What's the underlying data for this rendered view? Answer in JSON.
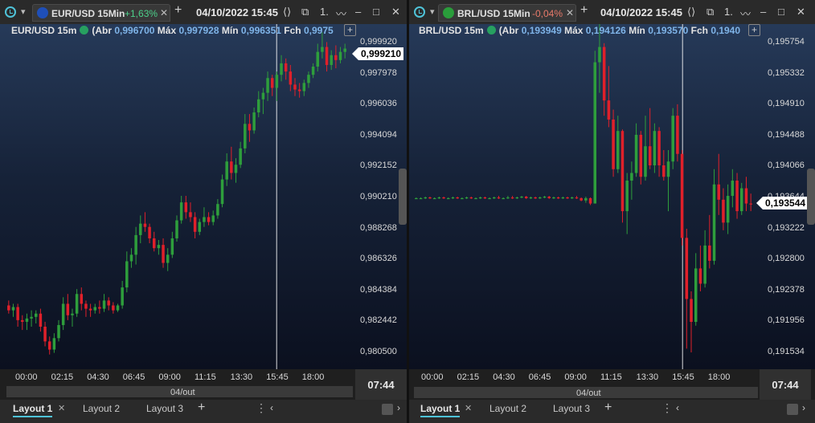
{
  "colors": {
    "up": "#2e9e3c",
    "down": "#e0202a",
    "accent": "#4fc3d8",
    "positive": "#4cd08a",
    "negative": "#e87a6a",
    "value": "#7fb4e8",
    "crosshair": "#ffffff"
  },
  "panels": [
    {
      "id": "eurusd",
      "tab": {
        "symbol": "EUR/USD 15Min",
        "change": "+1,63%",
        "change_sign": "positive",
        "flag_icon": "eu-flag-icon",
        "close_label": "✕"
      },
      "datetime": "04/10/2022 15:45",
      "toolbar_icons": [
        "share-icon",
        "window-icon",
        "one-step-icon",
        "line-chart-icon",
        "minimize-icon",
        "maximize-icon",
        "close-icon"
      ],
      "info": {
        "title": "EUR/USD 15m",
        "open_label": "(Abr",
        "open": "0,996700",
        "high_label": "Máx",
        "high": "0,997928",
        "low_label": "Mín",
        "low": "0,996351",
        "close_label": "Fch",
        "close": "0,9975"
      },
      "y_ticks": [
        "0,999920",
        "0,997978",
        "0,996036",
        "0,994094",
        "0,992152",
        "0,990210",
        "0,988268",
        "0,986326",
        "0,984384",
        "0,982442",
        "0,980500"
      ],
      "last_price": "0,999210",
      "x_ticks": [
        "00:00",
        "02:15",
        "04:30",
        "06:45",
        "09:00",
        "11:15",
        "13:30",
        "15:45",
        "18:00"
      ],
      "time_box": "07:44",
      "scroll_date": "04/out",
      "chart_data": {
        "type": "candlestick",
        "y_range": [
          0.9796,
          1.0007
        ],
        "x_range": [
          "00:00",
          "20:30"
        ],
        "crosshair_time": "15:45",
        "candles": [
          [
            0.9835,
            0.9838,
            0.983,
            0.9832
          ],
          [
            0.9832,
            0.9836,
            0.9828,
            0.9834
          ],
          [
            0.9834,
            0.9836,
            0.9822,
            0.9826
          ],
          [
            0.9826,
            0.9829,
            0.982,
            0.9825
          ],
          [
            0.9825,
            0.983,
            0.982,
            0.9827
          ],
          [
            0.9827,
            0.9832,
            0.9822,
            0.9828
          ],
          [
            0.9828,
            0.9832,
            0.9824,
            0.983
          ],
          [
            0.983,
            0.9833,
            0.9819,
            0.9822
          ],
          [
            0.9822,
            0.9825,
            0.981,
            0.9813
          ],
          [
            0.9813,
            0.9816,
            0.9805,
            0.9808
          ],
          [
            0.9808,
            0.9818,
            0.9806,
            0.9815
          ],
          [
            0.9815,
            0.9826,
            0.9813,
            0.9823
          ],
          [
            0.9823,
            0.984,
            0.982,
            0.9836
          ],
          [
            0.9836,
            0.9842,
            0.9826,
            0.9829
          ],
          [
            0.9829,
            0.9833,
            0.9822,
            0.983
          ],
          [
            0.983,
            0.9845,
            0.9828,
            0.9842
          ],
          [
            0.9842,
            0.9846,
            0.9832,
            0.9836
          ],
          [
            0.9836,
            0.9838,
            0.9828,
            0.9833
          ],
          [
            0.9833,
            0.9836,
            0.9828,
            0.9832
          ],
          [
            0.9832,
            0.9836,
            0.983,
            0.9834
          ],
          [
            0.9834,
            0.9838,
            0.983,
            0.9833
          ],
          [
            0.9833,
            0.9842,
            0.9831,
            0.9838
          ],
          [
            0.9838,
            0.984,
            0.9832,
            0.9835
          ],
          [
            0.9835,
            0.9837,
            0.983,
            0.9832
          ],
          [
            0.9832,
            0.9836,
            0.9831,
            0.9835
          ],
          [
            0.9835,
            0.985,
            0.9833,
            0.9846
          ],
          [
            0.9846,
            0.9868,
            0.9843,
            0.9862
          ],
          [
            0.9862,
            0.987,
            0.9858,
            0.9866
          ],
          [
            0.9866,
            0.9883,
            0.986,
            0.9878
          ],
          [
            0.9878,
            0.989,
            0.9873,
            0.9885
          ],
          [
            0.9885,
            0.9892,
            0.988,
            0.9883
          ],
          [
            0.9883,
            0.9885,
            0.9873,
            0.9876
          ],
          [
            0.9876,
            0.988,
            0.9868,
            0.987
          ],
          [
            0.987,
            0.9875,
            0.9866,
            0.9872
          ],
          [
            0.9872,
            0.9876,
            0.9858,
            0.9861
          ],
          [
            0.9861,
            0.987,
            0.9856,
            0.9866
          ],
          [
            0.9866,
            0.988,
            0.9864,
            0.9876
          ],
          [
            0.9876,
            0.989,
            0.9874,
            0.9887
          ],
          [
            0.9887,
            0.9902,
            0.9885,
            0.9898
          ],
          [
            0.9898,
            0.9902,
            0.9888,
            0.9892
          ],
          [
            0.9892,
            0.9898,
            0.9886,
            0.9889
          ],
          [
            0.9889,
            0.9892,
            0.9876,
            0.988
          ],
          [
            0.988,
            0.9888,
            0.9878,
            0.9886
          ],
          [
            0.9886,
            0.9895,
            0.9883,
            0.9889
          ],
          [
            0.9889,
            0.9892,
            0.9884,
            0.9886
          ],
          [
            0.9886,
            0.9893,
            0.9884,
            0.989
          ],
          [
            0.989,
            0.99,
            0.9888,
            0.9897
          ],
          [
            0.9897,
            0.9915,
            0.9895,
            0.9912
          ],
          [
            0.9912,
            0.9928,
            0.9908,
            0.9923
          ],
          [
            0.9923,
            0.9932,
            0.9912,
            0.9916
          ],
          [
            0.9916,
            0.9925,
            0.991,
            0.9921
          ],
          [
            0.9921,
            0.9935,
            0.9919,
            0.9931
          ],
          [
            0.9931,
            0.9952,
            0.9928,
            0.9946
          ],
          [
            0.9946,
            0.9952,
            0.9935,
            0.9942
          ],
          [
            0.9942,
            0.9956,
            0.994,
            0.9953
          ],
          [
            0.9953,
            0.9966,
            0.995,
            0.9961
          ],
          [
            0.9961,
            0.9968,
            0.9952,
            0.9965
          ],
          [
            0.9965,
            0.9978,
            0.996,
            0.9974
          ],
          [
            0.9974,
            0.9976,
            0.9963,
            0.9968
          ],
          [
            0.9968,
            0.9978,
            0.996,
            0.9976
          ],
          [
            0.9976,
            0.9988,
            0.9972,
            0.9983
          ],
          [
            0.9983,
            0.9986,
            0.9973,
            0.9978
          ],
          [
            0.9978,
            0.9982,
            0.9966,
            0.997
          ],
          [
            0.997,
            0.9974,
            0.9963,
            0.9967
          ],
          [
            0.9967,
            0.9971,
            0.9962,
            0.9966
          ],
          [
            0.9966,
            0.9973,
            0.9963,
            0.9971
          ],
          [
            0.9971,
            0.9978,
            0.9968,
            0.9976
          ],
          [
            0.9976,
            0.9983,
            0.9974,
            0.9981
          ],
          [
            0.9981,
            0.9995,
            0.9978,
            0.999
          ],
          [
            0.999,
            1.0002,
            0.9986,
            0.9993
          ],
          [
            0.9993,
            0.9996,
            0.9978,
            0.9982
          ],
          [
            0.9982,
            0.9991,
            0.9979,
            0.9988
          ],
          [
            0.9988,
            0.9994,
            0.998,
            0.9985
          ],
          [
            0.9985,
            0.9993,
            0.9983,
            0.999
          ],
          [
            0.999,
            0.9995,
            0.9986,
            0.9992
          ]
        ]
      }
    },
    {
      "id": "brlusd",
      "tab": {
        "symbol": "BRL/USD 15Min",
        "change": "-0,04%",
        "change_sign": "negative",
        "flag_icon": "br-flag-icon",
        "close_label": "✕"
      },
      "datetime": "04/10/2022 15:45",
      "toolbar_icons": [
        "share-icon",
        "window-icon",
        "one-step-icon",
        "line-chart-icon",
        "minimize-icon",
        "maximize-icon",
        "close-icon"
      ],
      "info": {
        "title": "BRL/USD 15m",
        "open_label": "(Abr",
        "open": "0,193949",
        "high_label": "Máx",
        "high": "0,194126",
        "low_label": "Mín",
        "low": "0,193570",
        "close_label": "Fch",
        "close": "0,1940"
      },
      "y_ticks": [
        "0,195754",
        "0,195332",
        "0,194910",
        "0,194488",
        "0,194066",
        "0,193644",
        "0,193222",
        "0,192800",
        "0,192378",
        "0,191956",
        "0,191534"
      ],
      "last_price": "0,193544",
      "x_ticks": [
        "00:00",
        "02:15",
        "04:30",
        "06:45",
        "09:00",
        "11:15",
        "13:30",
        "15:45",
        "18:00"
      ],
      "time_box": "07:44",
      "scroll_date": "04/out",
      "chart_data": {
        "type": "candlestick",
        "y_range": [
          0.19138,
          0.1959
        ],
        "x_range": [
          "00:00",
          "20:30"
        ],
        "crosshair_time": "15:45",
        "candles": [
          [
            0.19362,
            0.19363,
            0.19361,
            0.19362
          ],
          [
            0.19362,
            0.19363,
            0.19361,
            0.19362
          ],
          [
            0.19362,
            0.19364,
            0.19361,
            0.19363
          ],
          [
            0.19363,
            0.19364,
            0.19361,
            0.19362
          ],
          [
            0.19362,
            0.19363,
            0.19361,
            0.19362
          ],
          [
            0.19362,
            0.19364,
            0.19361,
            0.19363
          ],
          [
            0.19363,
            0.19364,
            0.19361,
            0.19362
          ],
          [
            0.19362,
            0.19363,
            0.19361,
            0.19362
          ],
          [
            0.19362,
            0.19364,
            0.19361,
            0.19363
          ],
          [
            0.19363,
            0.19364,
            0.19361,
            0.19362
          ],
          [
            0.19362,
            0.19363,
            0.19361,
            0.19362
          ],
          [
            0.19362,
            0.19364,
            0.19361,
            0.19363
          ],
          [
            0.19363,
            0.19364,
            0.19361,
            0.19362
          ],
          [
            0.19362,
            0.19363,
            0.19361,
            0.19362
          ],
          [
            0.19362,
            0.19364,
            0.19361,
            0.19363
          ],
          [
            0.19363,
            0.19364,
            0.19361,
            0.19362
          ],
          [
            0.19362,
            0.19363,
            0.19361,
            0.19362
          ],
          [
            0.19362,
            0.19364,
            0.19361,
            0.19363
          ],
          [
            0.19363,
            0.19365,
            0.19361,
            0.19362
          ],
          [
            0.19362,
            0.19363,
            0.19361,
            0.19362
          ],
          [
            0.19362,
            0.19365,
            0.19361,
            0.19363
          ],
          [
            0.19363,
            0.19365,
            0.19361,
            0.19362
          ],
          [
            0.19362,
            0.19364,
            0.19361,
            0.19363
          ],
          [
            0.19363,
            0.19365,
            0.19362,
            0.19364
          ],
          [
            0.19364,
            0.19365,
            0.19361,
            0.19362
          ],
          [
            0.19362,
            0.19364,
            0.19361,
            0.19363
          ],
          [
            0.19363,
            0.19364,
            0.19361,
            0.19362
          ],
          [
            0.19362,
            0.19364,
            0.19361,
            0.19363
          ],
          [
            0.19363,
            0.19365,
            0.19362,
            0.19364
          ],
          [
            0.19364,
            0.19365,
            0.19361,
            0.19362
          ],
          [
            0.19362,
            0.19364,
            0.19361,
            0.19363
          ],
          [
            0.19363,
            0.19364,
            0.19361,
            0.19362
          ],
          [
            0.19362,
            0.19364,
            0.19361,
            0.19363
          ],
          [
            0.19363,
            0.19364,
            0.19361,
            0.19362
          ],
          [
            0.19362,
            0.19364,
            0.19361,
            0.19363
          ],
          [
            0.19363,
            0.19365,
            0.19361,
            0.19362
          ],
          [
            0.19362,
            0.19363,
            0.19358,
            0.19359
          ],
          [
            0.19359,
            0.19364,
            0.19356,
            0.19362
          ],
          [
            0.19362,
            0.19363,
            0.19353,
            0.19355
          ],
          [
            0.19355,
            0.19555,
            0.19355,
            0.1954
          ],
          [
            0.1954,
            0.1959,
            0.195,
            0.1956
          ],
          [
            0.1956,
            0.19565,
            0.1947,
            0.1949
          ],
          [
            0.1949,
            0.19535,
            0.19455,
            0.19465
          ],
          [
            0.19465,
            0.19478,
            0.1939,
            0.194
          ],
          [
            0.194,
            0.1947,
            0.19395,
            0.1945
          ],
          [
            0.1945,
            0.19452,
            0.1933,
            0.19345
          ],
          [
            0.19345,
            0.19395,
            0.19315,
            0.19385
          ],
          [
            0.19385,
            0.1941,
            0.1936,
            0.19395
          ],
          [
            0.19395,
            0.1946,
            0.1939,
            0.19445
          ],
          [
            0.19445,
            0.1945,
            0.1938,
            0.1939
          ],
          [
            0.1939,
            0.1947,
            0.19385,
            0.1943
          ],
          [
            0.1943,
            0.1948,
            0.194,
            0.19405
          ],
          [
            0.19405,
            0.1946,
            0.19395,
            0.1945
          ],
          [
            0.1945,
            0.19455,
            0.1939,
            0.19405
          ],
          [
            0.19405,
            0.19425,
            0.19385,
            0.1939
          ],
          [
            0.1939,
            0.19425,
            0.19345,
            0.1941
          ],
          [
            0.1941,
            0.1948,
            0.194,
            0.1947
          ],
          [
            0.1947,
            0.19485,
            0.1941,
            0.1942
          ],
          [
            0.1942,
            0.19425,
            0.193,
            0.1931
          ],
          [
            0.1931,
            0.19322,
            0.19165,
            0.1923
          ],
          [
            0.1923,
            0.1924,
            0.1916,
            0.192
          ],
          [
            0.192,
            0.1929,
            0.19195,
            0.1927
          ],
          [
            0.1927,
            0.193,
            0.1924,
            0.1925
          ],
          [
            0.1925,
            0.1932,
            0.19245,
            0.193
          ],
          [
            0.193,
            0.1934,
            0.1927,
            0.1928
          ],
          [
            0.1928,
            0.194,
            0.19275,
            0.1938
          ],
          [
            0.1938,
            0.1942,
            0.1934,
            0.1936
          ],
          [
            0.1936,
            0.19375,
            0.1932,
            0.1933
          ],
          [
            0.1933,
            0.1938,
            0.19315,
            0.19365
          ],
          [
            0.19365,
            0.194,
            0.1935,
            0.19385
          ],
          [
            0.19385,
            0.19395,
            0.19335,
            0.19345
          ],
          [
            0.19345,
            0.19382,
            0.1934,
            0.19375
          ],
          [
            0.19375,
            0.1939,
            0.19345,
            0.19355
          ],
          [
            0.19355,
            0.19368,
            0.19345,
            0.19354
          ]
        ]
      }
    }
  ],
  "layout_tabs": [
    {
      "label": "Layout 1",
      "active": true,
      "close": "✕"
    },
    {
      "label": "Layout 2",
      "active": false
    },
    {
      "label": "Layout 3",
      "active": false
    }
  ]
}
